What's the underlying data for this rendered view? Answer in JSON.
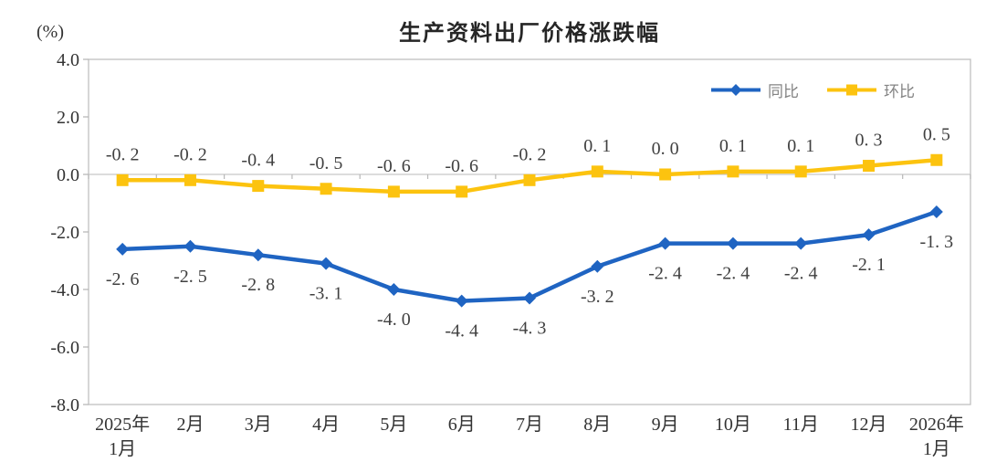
{
  "page": {
    "background": "#ffffff"
  },
  "chart_data": {
    "type": "line",
    "title": "生产资料出厂价格涨跌幅",
    "y_axis_unit_label": "(%)",
    "ylim": [
      -8.0,
      4.0
    ],
    "y_tick_step": 2.0,
    "y_ticks": [
      "4.0",
      "2.0",
      "0.0",
      "-2.0",
      "-4.0",
      "-6.0",
      "-8.0"
    ],
    "grid": "zero-line-only",
    "legend_position": "top-right-inside",
    "categories": [
      "2025年\n1月",
      "2月",
      "3月",
      "4月",
      "5月",
      "6月",
      "7月",
      "8月",
      "9月",
      "10月",
      "11月",
      "12月",
      "2026年\n1月"
    ],
    "series": [
      {
        "name": "同比",
        "color": "#1f64c2",
        "marker": "diamond",
        "label_position": "below",
        "values": [
          -2.6,
          -2.5,
          -2.8,
          -3.1,
          -4.0,
          -4.4,
          -4.3,
          -3.2,
          -2.4,
          -2.4,
          -2.4,
          -2.1,
          -1.3
        ]
      },
      {
        "name": "环比",
        "color": "#fcc30f",
        "marker": "square",
        "label_position": "above",
        "values": [
          -0.2,
          -0.2,
          -0.4,
          -0.5,
          -0.6,
          -0.6,
          -0.2,
          0.1,
          0.0,
          0.1,
          0.1,
          0.3,
          0.5
        ]
      }
    ],
    "colors": {
      "axis_border": "#c0c0c0",
      "zero_line": "#c6c6c6",
      "tick": "#b8b8b8",
      "axis_text": "#333333",
      "data_label_text": "#404040"
    }
  }
}
